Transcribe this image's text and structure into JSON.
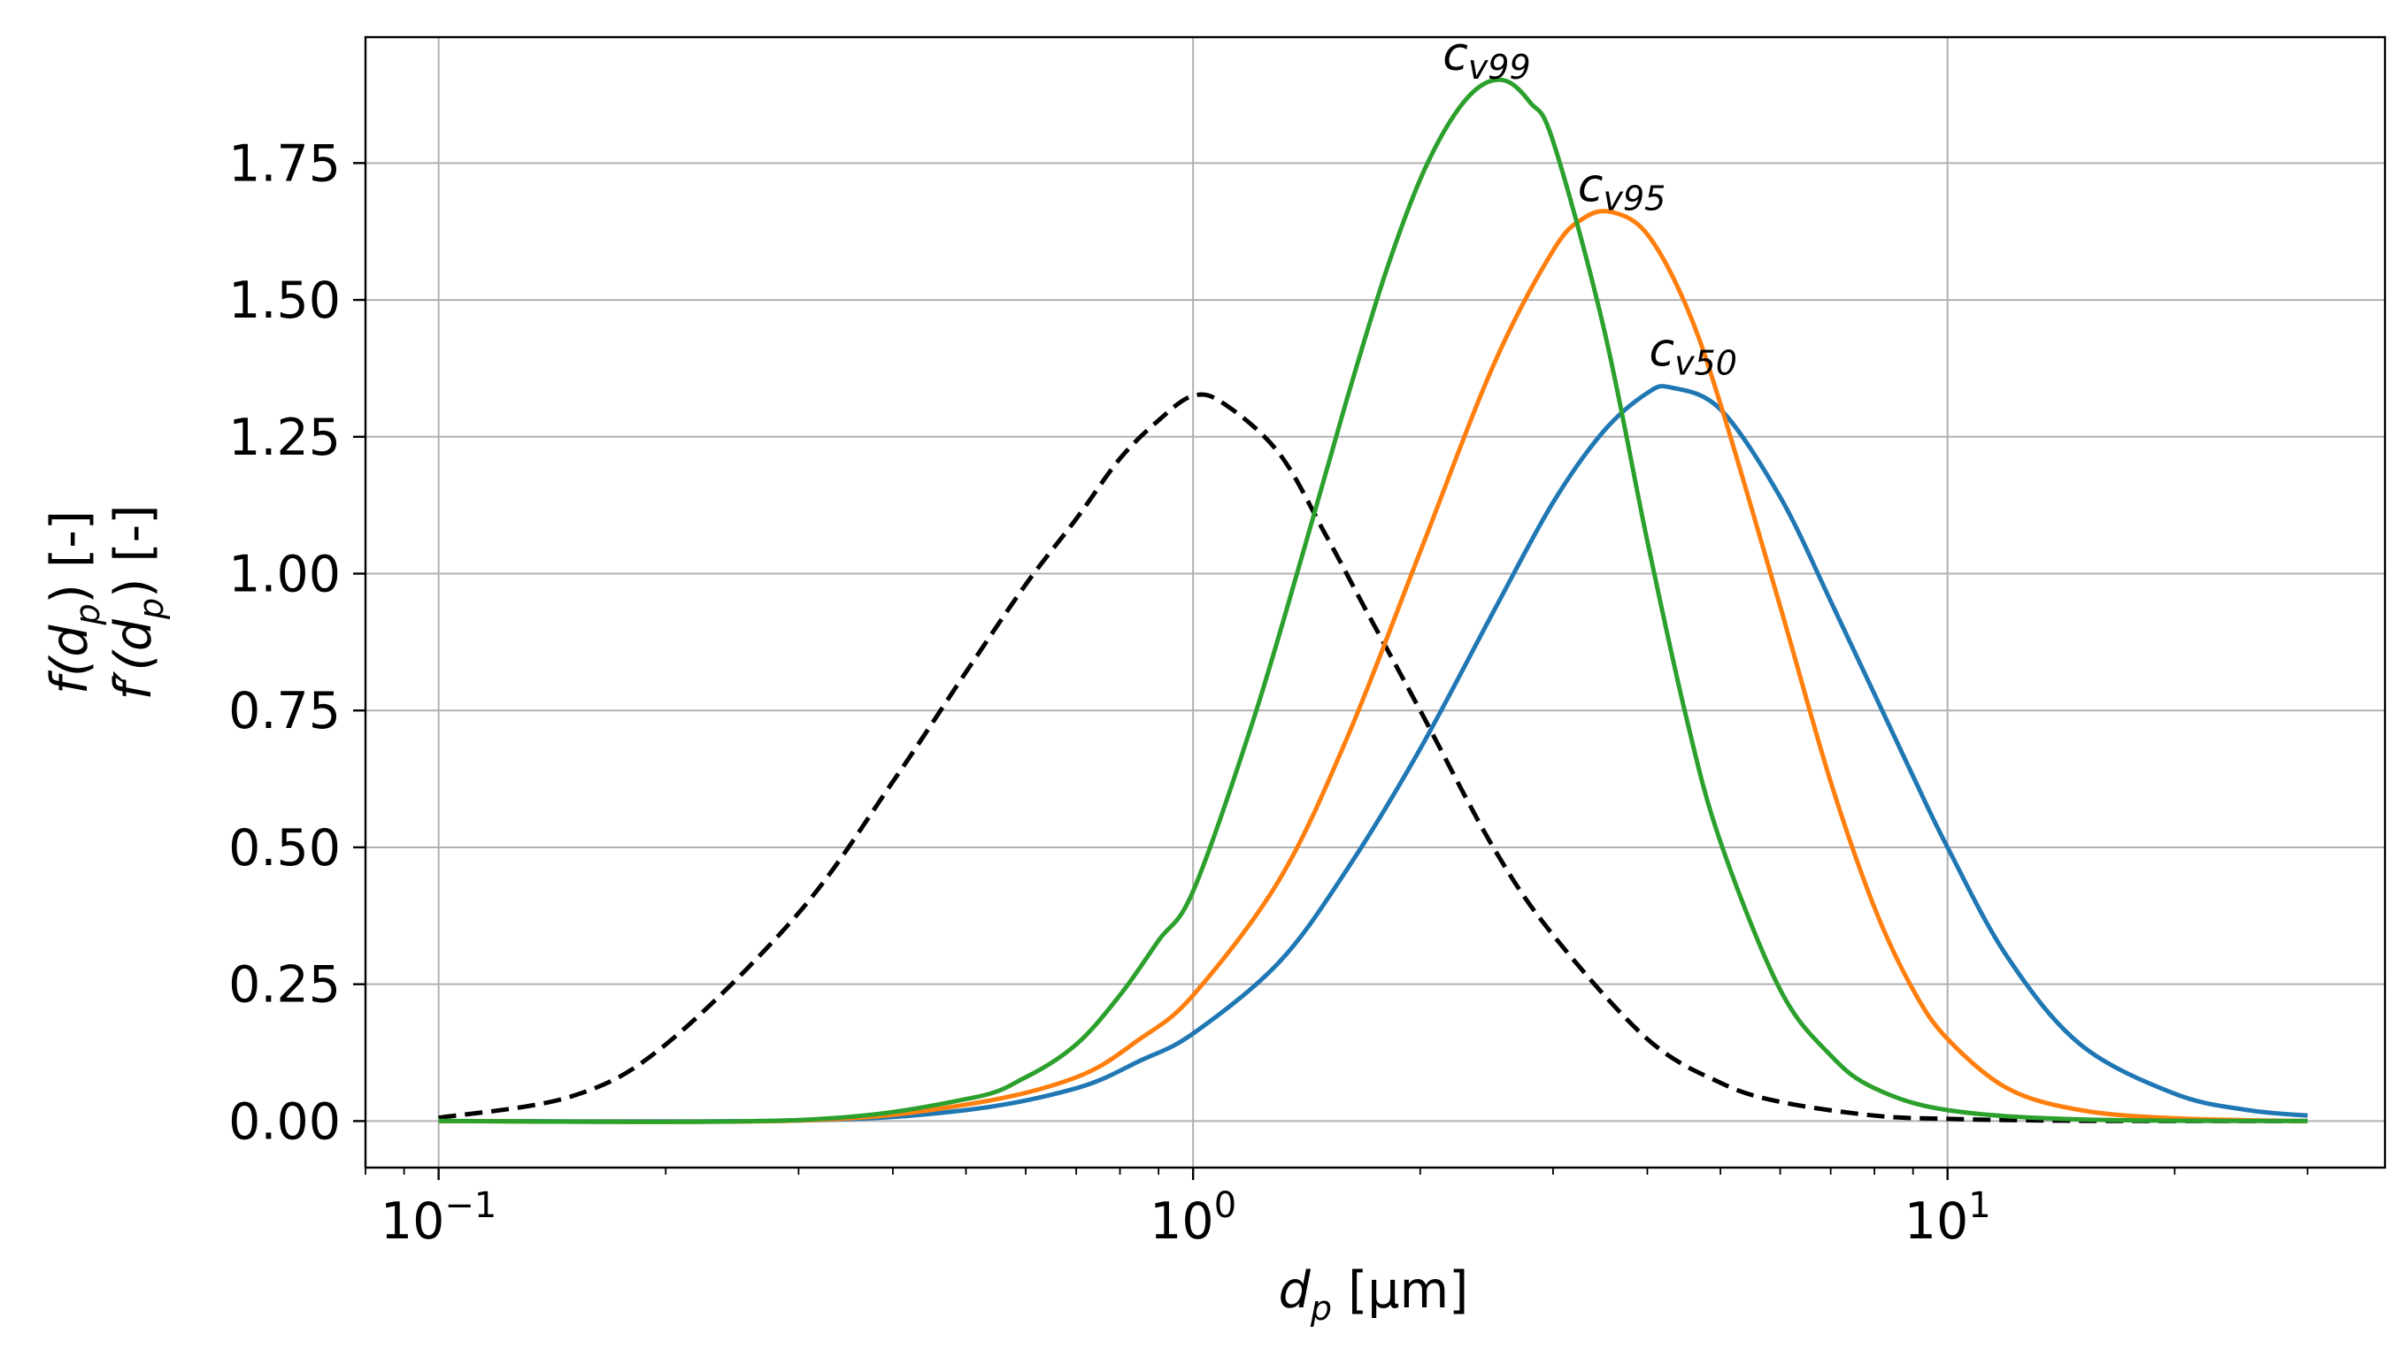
{
  "chart_data": {
    "type": "line",
    "title": "",
    "x_scale": "log",
    "xlim": [
      0.08,
      38
    ],
    "ylim": [
      -0.085,
      1.98
    ],
    "grid": true,
    "xlabel": {
      "main": "d",
      "sub": "p",
      "unit": " [μm]"
    },
    "ylabel_lines": [
      {
        "main": "f(d",
        "sub": "p",
        "tail": ") [-]"
      },
      {
        "main": "f′(d",
        "sub": "p",
        "tail": ") [-]"
      }
    ],
    "x_ticks": [
      {
        "value": 0.1,
        "base": "10",
        "exp": "−1"
      },
      {
        "value": 1,
        "base": "10",
        "exp": "0"
      },
      {
        "value": 10,
        "base": "10",
        "exp": "1"
      }
    ],
    "y_ticks": [
      {
        "value": 0.0,
        "label": "0.00"
      },
      {
        "value": 0.25,
        "label": "0.25"
      },
      {
        "value": 0.5,
        "label": "0.50"
      },
      {
        "value": 0.75,
        "label": "0.75"
      },
      {
        "value": 1.0,
        "label": "1.00"
      },
      {
        "value": 1.25,
        "label": "1.25"
      },
      {
        "value": 1.5,
        "label": "1.50"
      },
      {
        "value": 1.75,
        "label": "1.75"
      }
    ],
    "series": [
      {
        "name": "f(dp)",
        "style": "dashed",
        "color": "#000000",
        "points": [
          [
            0.1,
            0.006
          ],
          [
            0.15,
            0.045
          ],
          [
            0.2,
            0.14
          ],
          [
            0.3,
            0.38
          ],
          [
            0.4,
            0.62
          ],
          [
            0.5,
            0.82
          ],
          [
            0.6,
            0.98
          ],
          [
            0.7,
            1.1
          ],
          [
            0.8,
            1.21
          ],
          [
            0.9,
            1.28
          ],
          [
            1.0,
            1.325
          ],
          [
            1.1,
            1.31
          ],
          [
            1.3,
            1.22
          ],
          [
            1.5,
            1.07
          ],
          [
            1.7,
            0.93
          ],
          [
            2.0,
            0.75
          ],
          [
            2.5,
            0.5
          ],
          [
            3.0,
            0.34
          ],
          [
            4.0,
            0.15
          ],
          [
            5.0,
            0.07
          ],
          [
            6.0,
            0.035
          ],
          [
            8.0,
            0.01
          ],
          [
            10,
            0.004
          ],
          [
            15,
            0.0005
          ],
          [
            30,
            0.0
          ]
        ]
      },
      {
        "name": "c_v50",
        "style": "solid",
        "color": "#1f77b4",
        "annotation": {
          "main": "c",
          "sub": "v50",
          "x": 4.6,
          "y": 1.38
        },
        "points": [
          [
            0.1,
            0.0
          ],
          [
            0.3,
            0.001
          ],
          [
            0.5,
            0.02
          ],
          [
            0.7,
            0.06
          ],
          [
            0.85,
            0.11
          ],
          [
            1.0,
            0.16
          ],
          [
            1.3,
            0.29
          ],
          [
            1.6,
            0.46
          ],
          [
            2.0,
            0.68
          ],
          [
            2.5,
            0.93
          ],
          [
            3.0,
            1.13
          ],
          [
            3.5,
            1.26
          ],
          [
            4.0,
            1.33
          ],
          [
            4.3,
            1.34
          ],
          [
            5.0,
            1.3
          ],
          [
            6.0,
            1.14
          ],
          [
            7.0,
            0.95
          ],
          [
            8.0,
            0.78
          ],
          [
            9.0,
            0.63
          ],
          [
            10,
            0.5
          ],
          [
            12,
            0.3
          ],
          [
            15,
            0.14
          ],
          [
            20,
            0.05
          ],
          [
            25,
            0.02
          ],
          [
            30,
            0.01
          ]
        ]
      },
      {
        "name": "c_v95",
        "style": "solid",
        "color": "#ff7f0e",
        "annotation": {
          "main": "c",
          "sub": "v95",
          "x": 3.7,
          "y": 1.68
        },
        "points": [
          [
            0.1,
            0.0
          ],
          [
            0.3,
            0.001
          ],
          [
            0.5,
            0.03
          ],
          [
            0.7,
            0.08
          ],
          [
            0.85,
            0.15
          ],
          [
            1.0,
            0.23
          ],
          [
            1.3,
            0.44
          ],
          [
            1.6,
            0.7
          ],
          [
            2.0,
            1.04
          ],
          [
            2.5,
            1.38
          ],
          [
            3.0,
            1.59
          ],
          [
            3.3,
            1.65
          ],
          [
            3.6,
            1.66
          ],
          [
            4.0,
            1.62
          ],
          [
            4.5,
            1.49
          ],
          [
            5.0,
            1.31
          ],
          [
            6.0,
            0.94
          ],
          [
            7.0,
            0.62
          ],
          [
            8.0,
            0.39
          ],
          [
            9.0,
            0.24
          ],
          [
            10,
            0.15
          ],
          [
            12,
            0.06
          ],
          [
            15,
            0.02
          ],
          [
            20,
            0.005
          ],
          [
            30,
            0.0
          ]
        ]
      },
      {
        "name": "c_v99",
        "style": "solid",
        "color": "#2ca02c",
        "annotation": {
          "main": "c",
          "sub": "v99",
          "x": 2.45,
          "y": 1.92
        },
        "points": [
          [
            0.1,
            0.0
          ],
          [
            0.3,
            0.002
          ],
          [
            0.5,
            0.04
          ],
          [
            0.6,
            0.08
          ],
          [
            0.7,
            0.14
          ],
          [
            0.8,
            0.23
          ],
          [
            0.9,
            0.33
          ],
          [
            1.0,
            0.42
          ],
          [
            1.2,
            0.73
          ],
          [
            1.4,
            1.04
          ],
          [
            1.6,
            1.32
          ],
          [
            1.8,
            1.55
          ],
          [
            2.0,
            1.72
          ],
          [
            2.2,
            1.83
          ],
          [
            2.4,
            1.89
          ],
          [
            2.6,
            1.9
          ],
          [
            2.8,
            1.86
          ],
          [
            3.0,
            1.79
          ],
          [
            3.5,
            1.45
          ],
          [
            4.0,
            1.06
          ],
          [
            4.5,
            0.74
          ],
          [
            5.0,
            0.51
          ],
          [
            6.0,
            0.24
          ],
          [
            7.0,
            0.12
          ],
          [
            8.0,
            0.06
          ],
          [
            10,
            0.02
          ],
          [
            15,
            0.003
          ],
          [
            30,
            0.0
          ]
        ]
      }
    ]
  }
}
